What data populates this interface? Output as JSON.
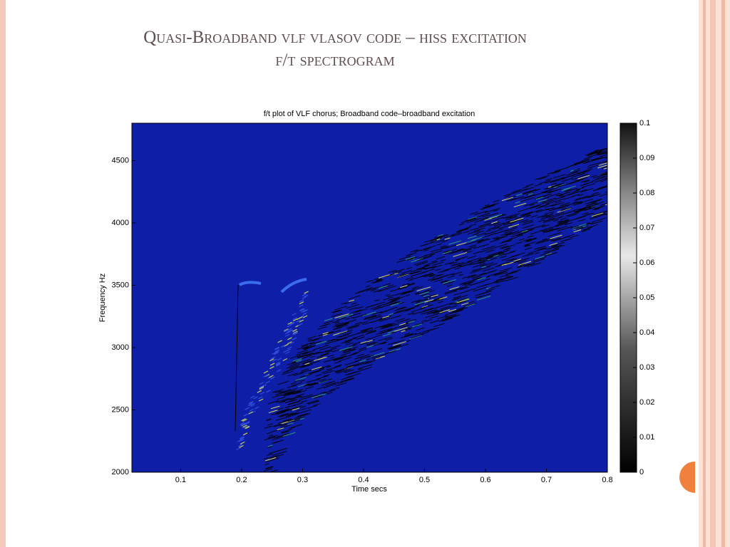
{
  "slide_title": [
    "Quasi-Broadband vlf vlasov code – hiss excitation",
    "f/t spectrogram"
  ],
  "chart_data": {
    "type": "heatmap",
    "title": "f/t plot of VLF chorus; Broadband code–broadband excitation",
    "x_label": "Time secs",
    "y_label": "Frequency Hz",
    "xlim": [
      0.02,
      0.8
    ],
    "xticks": [
      0.1,
      0.2,
      0.3,
      0.4,
      0.5,
      0.6,
      0.7,
      0.8
    ],
    "ylim": [
      2000,
      4800
    ],
    "yticks": [
      2000,
      2500,
      3000,
      3500,
      4000,
      4500
    ],
    "clim": [
      0,
      0.1
    ],
    "cticks": [
      0,
      0.01,
      0.02,
      0.03,
      0.04,
      0.05,
      0.06,
      0.07,
      0.08,
      0.09,
      0.1
    ],
    "colormap": "gray",
    "background_color": "#0f1ea6"
  }
}
